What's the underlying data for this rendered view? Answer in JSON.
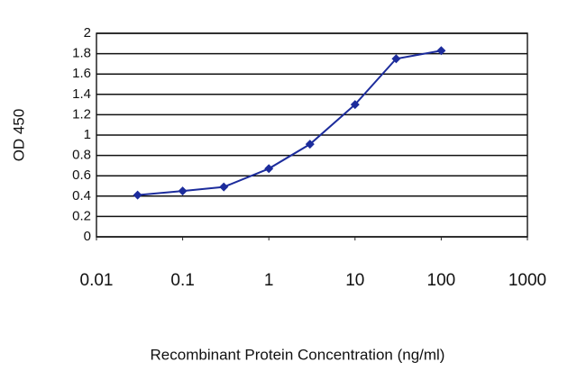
{
  "chart_data": {
    "type": "line",
    "x_label": "Recombinant Protein Concentration (ng/ml)",
    "y_label": "OD 450",
    "xscale": "log",
    "grid": true,
    "xlim": [
      0.01,
      1000
    ],
    "xticks": [
      0.01,
      0.1,
      1,
      10,
      100,
      1000
    ],
    "ylim": [
      0,
      2
    ],
    "yticks": [
      0,
      0.2,
      0.4,
      0.6,
      0.8,
      1,
      1.2,
      1.4,
      1.6,
      1.8,
      2
    ],
    "series": [
      {
        "color": "#1c2c9c",
        "x": [
          0.03,
          0.1,
          0.3,
          1,
          3,
          10,
          30,
          100
        ],
        "values": [
          0.41,
          0.45,
          0.49,
          0.67,
          0.91,
          1.3,
          1.75,
          1.83
        ]
      }
    ]
  }
}
